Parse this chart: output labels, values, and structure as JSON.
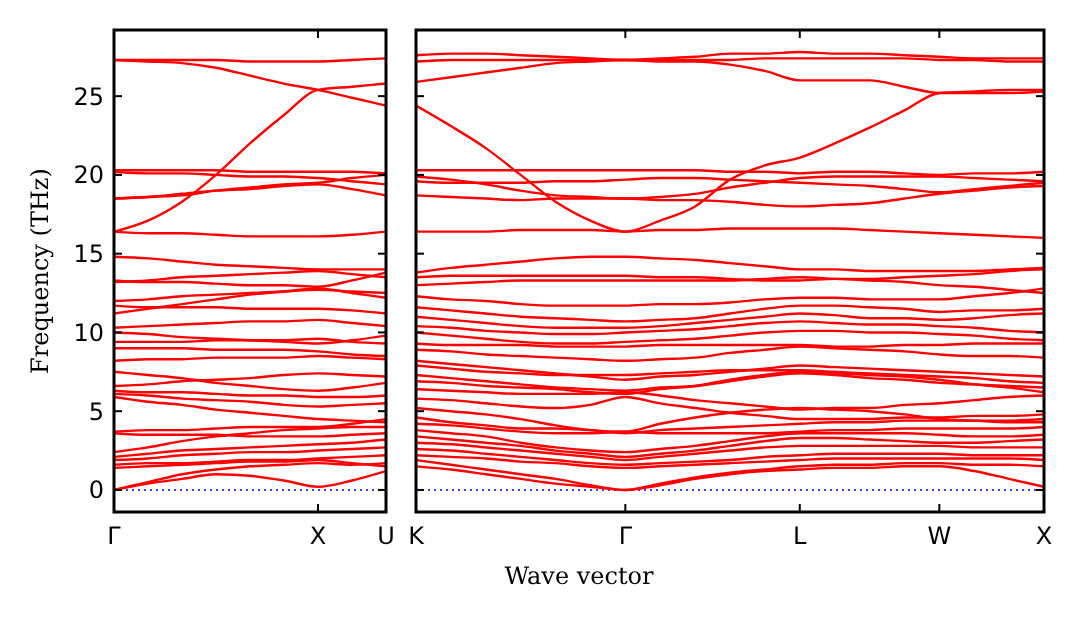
{
  "chart_data": [
    {
      "type": "line",
      "ylabel": "Frequency (THz)",
      "categories": [
        "Γ",
        null,
        null,
        null,
        null,
        null,
        "X",
        null,
        "U"
      ],
      "ylim": [
        -1.4,
        29.2
      ],
      "yticks": [
        0,
        5,
        10,
        15,
        20,
        25
      ],
      "ref_lines": [
        {
          "axis": "y",
          "value": 0,
          "color": "#0000ff",
          "line_style": "dotted"
        }
      ],
      "series": [
        {
          "color": "#ff0000",
          "values": [
            27.3,
            27.3,
            27.3,
            27.3,
            27.2,
            27.2,
            27.2,
            27.3,
            27.4
          ]
        },
        {
          "color": "#ff0000",
          "values": [
            27.3,
            27.2,
            27.1,
            26.8,
            26.3,
            25.8,
            25.4,
            24.9,
            24.4
          ]
        },
        {
          "color": "#ff0000",
          "values": [
            16.4,
            17.1,
            18.3,
            20.0,
            22.0,
            23.8,
            25.4,
            25.6,
            25.8
          ]
        },
        {
          "color": "#ff0000",
          "values": [
            20.3,
            20.3,
            20.3,
            20.3,
            20.2,
            20.2,
            20.2,
            20.2,
            20.1
          ]
        },
        {
          "color": "#ff0000",
          "values": [
            20.2,
            20.1,
            20.1,
            20.0,
            19.9,
            19.9,
            19.8,
            19.6,
            19.4
          ]
        },
        {
          "color": "#ff0000",
          "values": [
            18.5,
            18.6,
            18.8,
            19.0,
            19.1,
            19.3,
            19.4,
            19.1,
            18.7
          ]
        },
        {
          "color": "#ff0000",
          "values": [
            18.5,
            18.6,
            18.7,
            19.0,
            19.2,
            19.4,
            19.5,
            19.8,
            20.0
          ]
        },
        {
          "color": "#ff0000",
          "values": [
            16.4,
            16.3,
            16.3,
            16.2,
            16.1,
            16.1,
            16.1,
            16.2,
            16.4
          ]
        },
        {
          "color": "#ff0000",
          "values": [
            14.8,
            14.7,
            14.5,
            14.3,
            14.2,
            14.1,
            14.0,
            14.0,
            14.0
          ]
        },
        {
          "color": "#ff0000",
          "values": [
            13.3,
            13.2,
            13.2,
            13.1,
            13.0,
            13.0,
            12.9,
            13.3,
            13.8
          ]
        },
        {
          "color": "#ff0000",
          "values": [
            13.2,
            13.3,
            13.5,
            13.6,
            13.7,
            13.8,
            13.9,
            13.7,
            13.5
          ]
        },
        {
          "color": "#ff0000",
          "values": [
            12.0,
            12.1,
            12.3,
            12.4,
            12.5,
            12.6,
            12.7,
            12.6,
            12.5
          ]
        },
        {
          "color": "#ff0000",
          "values": [
            11.7,
            11.6,
            11.6,
            11.6,
            11.5,
            11.5,
            11.5,
            11.4,
            11.2
          ]
        },
        {
          "color": "#ff0000",
          "values": [
            11.2,
            11.5,
            11.8,
            12.1,
            12.4,
            12.6,
            12.8,
            12.5,
            12.2
          ]
        },
        {
          "color": "#ff0000",
          "values": [
            10.3,
            10.4,
            10.5,
            10.6,
            10.7,
            10.7,
            10.8,
            10.6,
            10.4
          ]
        },
        {
          "color": "#ff0000",
          "values": [
            10.0,
            9.9,
            9.7,
            9.6,
            9.5,
            9.4,
            9.3,
            9.5,
            9.8
          ]
        },
        {
          "color": "#ff0000",
          "values": [
            9.4,
            9.4,
            9.4,
            9.5,
            9.5,
            9.5,
            9.6,
            9.4,
            9.3
          ]
        },
        {
          "color": "#ff0000",
          "values": [
            9.0,
            9.0,
            9.0,
            8.9,
            8.9,
            8.9,
            8.8,
            8.6,
            8.5
          ]
        },
        {
          "color": "#ff0000",
          "values": [
            8.2,
            8.3,
            8.3,
            8.4,
            8.4,
            8.4,
            8.5,
            8.4,
            8.3
          ]
        },
        {
          "color": "#ff0000",
          "values": [
            7.5,
            7.3,
            7.1,
            6.8,
            6.6,
            6.4,
            6.3,
            6.5,
            6.8
          ]
        },
        {
          "color": "#ff0000",
          "values": [
            6.6,
            6.7,
            6.9,
            7.0,
            7.1,
            7.3,
            7.4,
            7.3,
            7.2
          ]
        },
        {
          "color": "#ff0000",
          "values": [
            6.3,
            6.2,
            6.2,
            6.1,
            6.0,
            6.0,
            5.9,
            5.9,
            6.0
          ]
        },
        {
          "color": "#ff0000",
          "values": [
            6.1,
            6.0,
            5.8,
            5.7,
            5.6,
            5.4,
            5.3,
            5.4,
            5.5
          ]
        },
        {
          "color": "#ff0000",
          "values": [
            5.9,
            5.6,
            5.4,
            5.1,
            4.9,
            4.7,
            4.5,
            4.4,
            4.3
          ]
        },
        {
          "color": "#ff0000",
          "values": [
            3.7,
            3.8,
            3.8,
            3.9,
            4.0,
            4.0,
            4.0,
            4.2,
            4.5
          ]
        },
        {
          "color": "#ff0000",
          "values": [
            3.6,
            3.5,
            3.5,
            3.5,
            3.4,
            3.4,
            3.4,
            3.5,
            3.6
          ]
        },
        {
          "color": "#ff0000",
          "values": [
            2.4,
            2.7,
            3.1,
            3.4,
            3.6,
            3.8,
            3.9,
            4.0,
            4.0
          ]
        },
        {
          "color": "#ff0000",
          "values": [
            2.1,
            2.3,
            2.5,
            2.6,
            2.7,
            2.8,
            2.9,
            3.0,
            3.2
          ]
        },
        {
          "color": "#ff0000",
          "values": [
            1.9,
            2.0,
            2.2,
            2.3,
            2.4,
            2.4,
            2.5,
            2.6,
            2.7
          ]
        },
        {
          "color": "#ff0000",
          "values": [
            1.6,
            1.7,
            1.7,
            1.8,
            1.9,
            1.9,
            2.0,
            2.1,
            2.2
          ]
        },
        {
          "color": "#ff0000",
          "values": [
            1.4,
            1.5,
            1.6,
            1.7,
            1.8,
            1.8,
            1.9,
            1.7,
            1.5
          ]
        },
        {
          "color": "#ff0000",
          "values": [
            0,
            0.5,
            1.0,
            1.3,
            1.5,
            1.6,
            1.7,
            1.6,
            1.7
          ]
        },
        {
          "color": "#ff0000",
          "values": [
            0,
            0.4,
            0.7,
            1.0,
            0.9,
            0.6,
            0.2,
            0.6,
            1.2
          ]
        }
      ]
    },
    {
      "type": "line",
      "xlabel": "Wave vector",
      "tick_labels": "x",
      "categories": [
        "K",
        null,
        null,
        null,
        null,
        null,
        "Γ",
        null,
        null,
        null,
        null,
        "L",
        null,
        null,
        null,
        "W",
        null,
        null,
        "X"
      ],
      "ylim": [
        -1.4,
        29.2
      ],
      "yticks": [
        0,
        5,
        10,
        15,
        20,
        25
      ],
      "ref_lines": [
        {
          "axis": "y",
          "value": 0,
          "color": "#0000ff",
          "line_style": "dotted"
        }
      ],
      "series": [
        {
          "color": "#ff0000",
          "values": [
            27.6,
            27.7,
            27.7,
            27.6,
            27.5,
            27.4,
            27.3,
            27.4,
            27.5,
            27.7,
            27.7,
            27.8,
            27.7,
            27.7,
            27.6,
            27.5,
            27.4,
            27.4,
            27.4
          ]
        },
        {
          "color": "#ff0000",
          "values": [
            27.2,
            27.3,
            27.3,
            27.3,
            27.3,
            27.3,
            27.3,
            27.2,
            27.2,
            27.0,
            26.6,
            26.0,
            26.0,
            26.0,
            25.6,
            25.2,
            25.2,
            25.2,
            25.3
          ]
        },
        {
          "color": "#ff0000",
          "values": [
            25.9,
            26.2,
            26.5,
            26.8,
            27.1,
            27.2,
            27.3,
            27.3,
            27.3,
            27.3,
            27.4,
            27.4,
            27.4,
            27.4,
            27.4,
            27.3,
            27.3,
            27.2,
            27.2
          ]
        },
        {
          "color": "#ff0000",
          "values": [
            24.4,
            23.1,
            21.7,
            20.0,
            18.3,
            17.1,
            16.4,
            17.1,
            18.0,
            19.7,
            20.6,
            21.1,
            22.0,
            23.0,
            24.1,
            25.2,
            25.3,
            25.4,
            25.4
          ]
        },
        {
          "color": "#ff0000",
          "values": [
            20.3,
            20.3,
            20.3,
            20.3,
            20.3,
            20.3,
            20.3,
            20.3,
            20.3,
            20.2,
            20.2,
            20.1,
            20.2,
            20.2,
            20.1,
            20.0,
            20.1,
            20.1,
            20.2
          ]
        },
        {
          "color": "#ff0000",
          "values": [
            19.9,
            19.7,
            19.4,
            19.0,
            18.7,
            18.6,
            18.5,
            18.6,
            18.8,
            19.2,
            19.5,
            19.8,
            19.9,
            19.9,
            19.9,
            19.9,
            19.8,
            19.7,
            19.6
          ]
        },
        {
          "color": "#ff0000",
          "values": [
            19.6,
            19.5,
            19.5,
            19.5,
            19.6,
            19.6,
            19.7,
            19.8,
            19.8,
            19.7,
            19.6,
            19.5,
            19.4,
            19.3,
            19.1,
            18.9,
            19.1,
            19.3,
            19.5
          ]
        },
        {
          "color": "#ff0000",
          "values": [
            18.7,
            18.6,
            18.5,
            18.4,
            18.5,
            18.5,
            18.5,
            18.4,
            18.4,
            18.3,
            18.1,
            18.0,
            18.1,
            18.2,
            18.5,
            18.8,
            19.0,
            19.2,
            19.3
          ]
        },
        {
          "color": "#ff0000",
          "values": [
            16.4,
            16.4,
            16.4,
            16.5,
            16.5,
            16.5,
            16.4,
            16.5,
            16.5,
            16.6,
            16.6,
            16.6,
            16.6,
            16.5,
            16.4,
            16.3,
            16.2,
            16.1,
            16.0
          ]
        },
        {
          "color": "#ff0000",
          "values": [
            13.8,
            14.1,
            14.3,
            14.5,
            14.7,
            14.8,
            14.8,
            14.7,
            14.6,
            14.4,
            14.2,
            14.0,
            14.0,
            13.9,
            13.9,
            13.9,
            13.9,
            14.0,
            14.1
          ]
        },
        {
          "color": "#ff0000",
          "values": [
            13.5,
            13.6,
            13.6,
            13.6,
            13.6,
            13.6,
            13.6,
            13.5,
            13.5,
            13.4,
            13.3,
            13.3,
            13.4,
            13.4,
            13.5,
            13.6,
            13.7,
            13.9,
            14.0
          ]
        },
        {
          "color": "#ff0000",
          "values": [
            13.0,
            13.1,
            13.2,
            13.3,
            13.3,
            13.3,
            13.3,
            13.3,
            13.3,
            13.3,
            13.4,
            13.5,
            13.4,
            13.3,
            13.2,
            13.0,
            12.9,
            12.7,
            12.5
          ]
        },
        {
          "color": "#ff0000",
          "values": [
            12.3,
            12.1,
            12.0,
            11.8,
            11.7,
            11.7,
            11.7,
            11.8,
            11.8,
            11.9,
            12.1,
            12.2,
            12.2,
            12.1,
            12.1,
            12.1,
            12.3,
            12.5,
            12.8
          ]
        },
        {
          "color": "#ff0000",
          "values": [
            11.6,
            11.4,
            11.2,
            11.0,
            10.9,
            10.8,
            10.7,
            10.8,
            10.9,
            11.2,
            11.5,
            11.7,
            11.7,
            11.6,
            11.5,
            11.3,
            11.4,
            11.4,
            11.5
          ]
        },
        {
          "color": "#ff0000",
          "values": [
            11.0,
            10.8,
            10.6,
            10.4,
            10.3,
            10.3,
            10.3,
            10.4,
            10.6,
            10.8,
            11.0,
            11.2,
            11.1,
            10.9,
            10.9,
            10.8,
            10.9,
            11.1,
            11.2
          ]
        },
        {
          "color": "#ff0000",
          "values": [
            10.4,
            10.3,
            10.1,
            10.0,
            9.9,
            9.9,
            10.0,
            10.1,
            10.2,
            10.4,
            10.6,
            10.7,
            10.6,
            10.5,
            10.5,
            10.4,
            10.3,
            10.1,
            10.0
          ]
        },
        {
          "color": "#ff0000",
          "values": [
            10.0,
            9.8,
            9.6,
            9.4,
            9.3,
            9.3,
            9.4,
            9.5,
            9.6,
            9.8,
            10.0,
            10.1,
            10.1,
            10.0,
            10.0,
            9.9,
            9.8,
            9.6,
            9.5
          ]
        },
        {
          "color": "#ff0000",
          "values": [
            9.3,
            9.2,
            9.2,
            9.2,
            9.1,
            9.1,
            9.1,
            9.2,
            9.2,
            9.2,
            9.2,
            9.2,
            9.1,
            9.1,
            9.2,
            9.2,
            9.3,
            9.3,
            9.3
          ]
        },
        {
          "color": "#ff0000",
          "values": [
            8.9,
            8.8,
            8.6,
            8.5,
            8.4,
            8.3,
            8.2,
            8.3,
            8.4,
            8.7,
            8.9,
            9.1,
            9.0,
            8.9,
            8.8,
            8.6,
            8.5,
            8.5,
            8.4
          ]
        },
        {
          "color": "#ff0000",
          "values": [
            8.2,
            8.0,
            7.8,
            7.6,
            7.4,
            7.2,
            7.0,
            7.2,
            7.3,
            7.5,
            7.7,
            7.9,
            7.8,
            7.7,
            7.6,
            7.5,
            7.4,
            7.3,
            7.2
          ]
        },
        {
          "color": "#ff0000",
          "values": [
            7.9,
            7.7,
            7.5,
            7.4,
            7.3,
            7.3,
            7.3,
            7.4,
            7.5,
            7.6,
            7.6,
            7.6,
            7.5,
            7.4,
            7.3,
            7.2,
            7.1,
            6.9,
            6.8
          ]
        },
        {
          "color": "#ff0000",
          "values": [
            7.3,
            7.1,
            6.9,
            6.7,
            6.5,
            6.4,
            6.3,
            6.5,
            6.6,
            6.9,
            7.2,
            7.4,
            7.3,
            7.1,
            7.0,
            6.8,
            6.7,
            6.6,
            6.5
          ]
        },
        {
          "color": "#ff0000",
          "values": [
            6.9,
            6.8,
            6.6,
            6.5,
            6.4,
            6.2,
            6.1,
            6.4,
            6.6,
            7.0,
            7.3,
            7.5,
            7.4,
            7.3,
            7.2,
            7.0,
            6.7,
            6.5,
            6.2
          ]
        },
        {
          "color": "#ff0000",
          "values": [
            6.4,
            6.3,
            6.2,
            6.1,
            6.1,
            6.1,
            6.2,
            6.0,
            5.7,
            5.5,
            5.3,
            5.1,
            5.2,
            5.2,
            5.4,
            5.5,
            5.7,
            5.9,
            6.0
          ]
        },
        {
          "color": "#ff0000",
          "values": [
            5.8,
            5.7,
            5.5,
            5.3,
            5.2,
            5.4,
            5.9,
            5.5,
            5.2,
            4.9,
            4.7,
            4.5,
            4.5,
            4.5,
            4.6,
            4.6,
            4.7,
            4.7,
            4.8
          ]
        },
        {
          "color": "#ff0000",
          "values": [
            5.2,
            5.0,
            4.8,
            4.5,
            4.1,
            3.8,
            3.7,
            4.2,
            4.6,
            4.9,
            5.1,
            5.2,
            5.1,
            5.0,
            4.8,
            4.5,
            4.4,
            4.3,
            4.3
          ]
        },
        {
          "color": "#ff0000",
          "values": [
            4.6,
            4.3,
            4.1,
            3.9,
            3.9,
            3.8,
            3.6,
            3.8,
            3.9,
            4.0,
            4.1,
            4.2,
            4.3,
            4.3,
            4.4,
            4.4,
            4.4,
            4.4,
            4.5
          ]
        },
        {
          "color": "#ff0000",
          "values": [
            4.2,
            4.1,
            3.9,
            3.7,
            3.6,
            3.6,
            3.7,
            3.6,
            3.6,
            3.6,
            3.6,
            3.7,
            3.8,
            3.8,
            3.9,
            3.9,
            3.9,
            3.9,
            4.0
          ]
        },
        {
          "color": "#ff0000",
          "values": [
            3.8,
            3.6,
            3.4,
            3.0,
            2.7,
            2.5,
            2.4,
            2.6,
            2.8,
            3.1,
            3.4,
            3.6,
            3.6,
            3.6,
            3.6,
            3.5,
            3.4,
            3.4,
            3.5
          ]
        },
        {
          "color": "#ff0000",
          "values": [
            3.4,
            3.2,
            3.0,
            2.8,
            2.5,
            2.3,
            2.1,
            2.3,
            2.5,
            2.8,
            3.1,
            3.3,
            3.3,
            3.2,
            3.1,
            3.0,
            3.0,
            3.1,
            3.2
          ]
        },
        {
          "color": "#ff0000",
          "values": [
            3.0,
            2.9,
            2.7,
            2.5,
            2.3,
            2.1,
            1.9,
            2.1,
            2.3,
            2.5,
            2.7,
            2.8,
            2.8,
            2.8,
            2.8,
            2.8,
            2.7,
            2.7,
            2.7
          ]
        },
        {
          "color": "#ff0000",
          "values": [
            2.6,
            2.5,
            2.3,
            2.1,
            1.9,
            1.7,
            1.6,
            1.7,
            1.8,
            1.9,
            2.1,
            2.2,
            2.3,
            2.3,
            2.3,
            2.3,
            2.2,
            2.2,
            2.2
          ]
        },
        {
          "color": "#ff0000",
          "values": [
            2.2,
            2.1,
            2.0,
            1.8,
            1.7,
            1.5,
            1.4,
            1.5,
            1.6,
            1.7,
            1.8,
            1.9,
            2.0,
            2.0,
            2.0,
            2.0,
            2.0,
            2.0,
            1.9
          ]
        },
        {
          "color": "#ff0000",
          "values": [
            1.9,
            1.6,
            1.3,
            1.0,
            0.7,
            0.3,
            0,
            0.4,
            0.8,
            1.1,
            1.3,
            1.5,
            1.6,
            1.6,
            1.7,
            1.7,
            1.6,
            1.6,
            1.5
          ]
        },
        {
          "color": "#ff0000",
          "values": [
            1.5,
            1.3,
            1.0,
            0.7,
            0.4,
            0.2,
            0,
            0.3,
            0.7,
            1.0,
            1.2,
            1.3,
            1.4,
            1.4,
            1.5,
            1.5,
            1.2,
            0.7,
            0.2
          ]
        }
      ]
    }
  ]
}
